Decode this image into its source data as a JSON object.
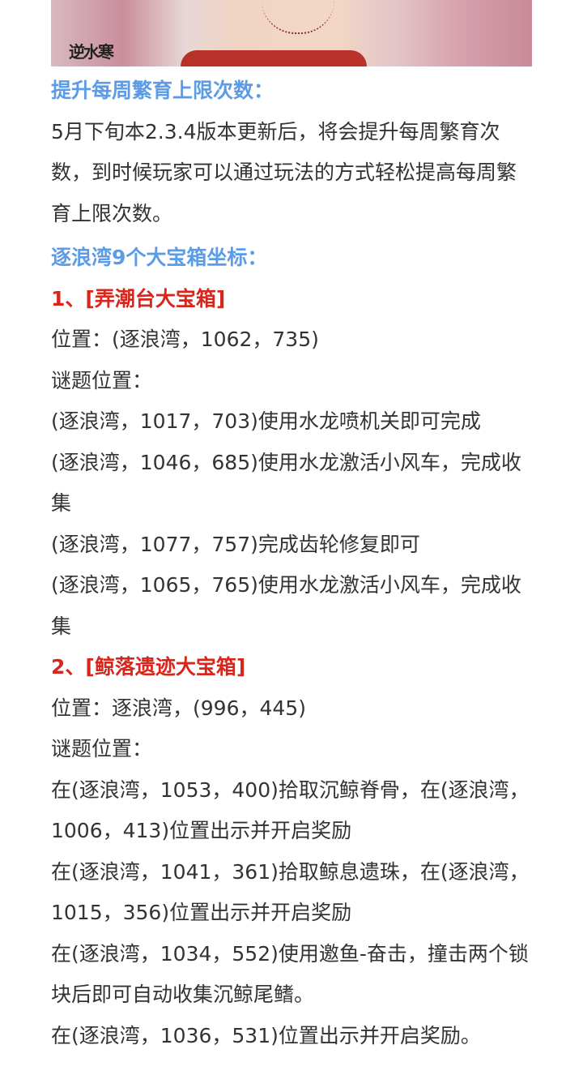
{
  "banner": {
    "logo_text": "逆水寒"
  },
  "sections": {
    "breeding_title": "提升每周繁育上限次数：",
    "breeding_text": "5月下旬本2.3.4版本更新后，将会提升每周繁育次数，到时候玩家可以通过玩法的方式轻松提高每周繁育上限次数。",
    "chests_title": "逐浪湾9个大宝箱坐标：",
    "chest1": {
      "title": "1、[弄潮台大宝箱]",
      "location": "位置：(逐浪湾，1062，735)",
      "puzzle_label": "谜题位置：",
      "puzzles": [
        "(逐浪湾，1017，703)使用水龙喷机关即可完成",
        "(逐浪湾，1046，685)使用水龙激活小风车，完成收集",
        "(逐浪湾，1077，757)完成齿轮修复即可",
        "(逐浪湾，1065，765)使用水龙激活小风车，完成收集"
      ]
    },
    "chest2": {
      "title": "2、[鲸落遗迹大宝箱]",
      "location": "位置：逐浪湾，(996，445)",
      "puzzle_label": "谜题位置：",
      "puzzles": [
        "在(逐浪湾，1053，400)拾取沉鲸脊骨，在(逐浪湾，1006，413)位置出示并开启奖励",
        "在(逐浪湾，1041，361)拾取鲸息遗珠，在(逐浪湾，1015，356)位置出示并开启奖励",
        "在(逐浪湾，1034，552)使用邀鱼-奋击，撞击两个锁块后即可自动收集沉鲸尾鳍。",
        "在(逐浪湾，1036，531)位置出示并开启奖励。"
      ]
    }
  },
  "colors": {
    "heading_blue": "#5c9ce6",
    "heading_red": "#d8261c",
    "text": "#333333"
  }
}
